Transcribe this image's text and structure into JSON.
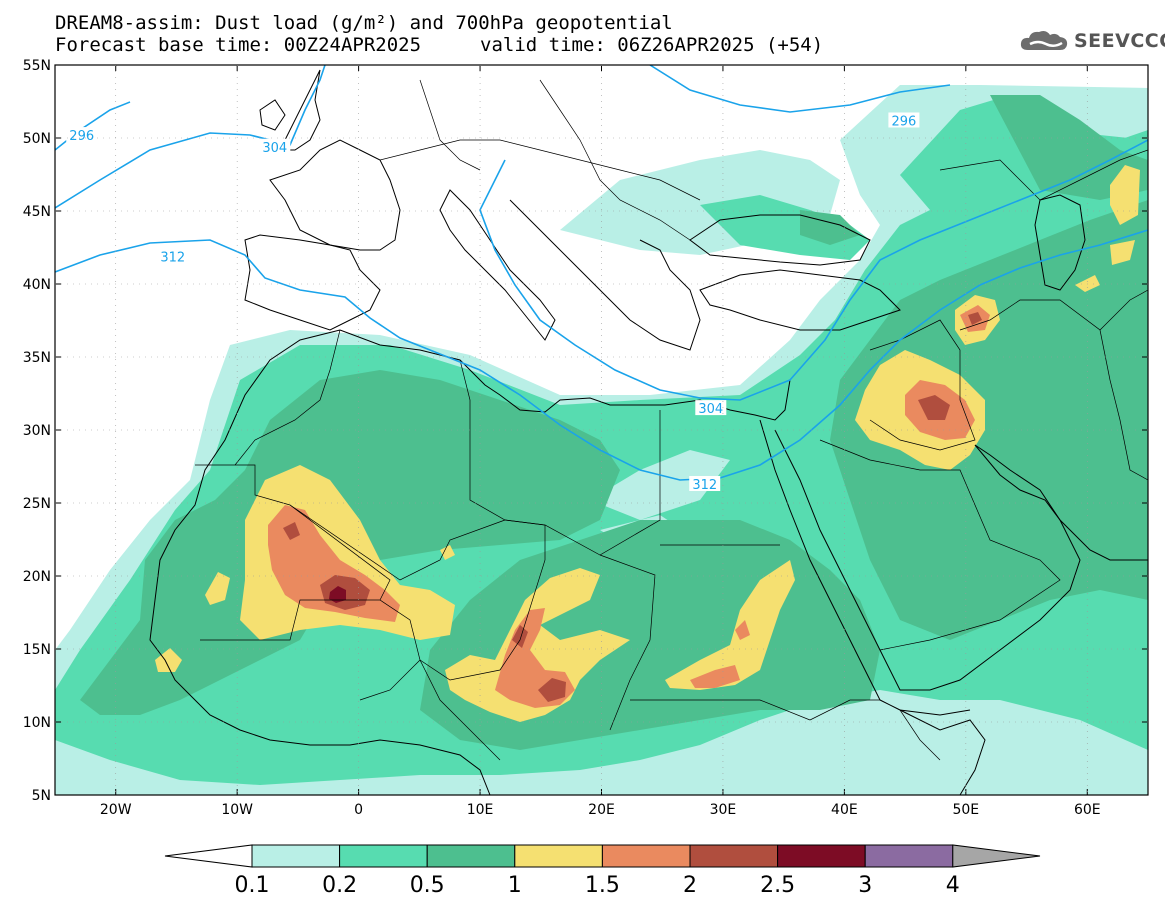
{
  "title": {
    "line1": "DREAM8-assim: Dust load (g/m²) and 700hPa geopotential",
    "line2": "Forecast base time: 00Z24APR2025",
    "line2b": "valid time: 06Z26APR2025 (+54)"
  },
  "logo": {
    "text": "SEEVCCC",
    "icon": "cloud-icon"
  },
  "map": {
    "lon_range": [
      -25,
      65
    ],
    "lat_range": [
      5,
      55
    ],
    "lat_ticks": [
      "5N",
      "10N",
      "15N",
      "20N",
      "25N",
      "30N",
      "35N",
      "40N",
      "45N",
      "50N",
      "55N"
    ],
    "lon_ticks": [
      "20W",
      "10W",
      "0",
      "10E",
      "20E",
      "30E",
      "40E",
      "50E",
      "60E"
    ],
    "contour_labels": [
      {
        "text": "296",
        "lon": -22.8,
        "lat": 50.2
      },
      {
        "text": "304",
        "lon": -6.9,
        "lat": 49.4
      },
      {
        "text": "312",
        "lon": -15.3,
        "lat": 41.9
      },
      {
        "text": "296",
        "lon": 44.9,
        "lat": 51.2
      },
      {
        "text": "304",
        "lon": 29.0,
        "lat": 31.5
      },
      {
        "text": "312",
        "lon": 28.5,
        "lat": 26.3
      }
    ],
    "colors": {
      "c1": "#b9efe6",
      "c2": "#57dcb0",
      "c3": "#4dbf8f",
      "c4": "#f5e071",
      "c5": "#ea8a5f",
      "c6": "#b04e3e",
      "c7": "#7d0c25",
      "contour": "#1aa3ea"
    }
  },
  "colorbar": {
    "labels": [
      "0.1",
      "0.2",
      "0.5",
      "1",
      "1.5",
      "2",
      "2.5",
      "3",
      "4"
    ],
    "colors": [
      "#b9efe6",
      "#57dcb0",
      "#4dbf8f",
      "#f5e071",
      "#ea8a5f",
      "#b04e3e",
      "#7d0c25",
      "#8b6ba1"
    ],
    "left_tip_color": "#ffffff",
    "right_tip_color": "#a6a6a6"
  }
}
